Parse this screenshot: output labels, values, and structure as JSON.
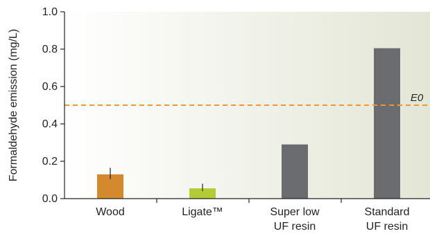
{
  "chart_data": {
    "type": "bar",
    "categories": [
      "Wood",
      "Ligate™",
      "Super low UF resin",
      "Standard UF resin"
    ],
    "category_lines": [
      [
        "Wood"
      ],
      [
        "Ligate™"
      ],
      [
        "Super low",
        "UF resin"
      ],
      [
        "Standard",
        "UF resin"
      ]
    ],
    "values": [
      0.13,
      0.055,
      0.29,
      0.805
    ],
    "error_bars": [
      {
        "low": 0.105,
        "high": 0.165
      },
      {
        "low": 0.04,
        "high": 0.08
      },
      null,
      null
    ],
    "bar_colors": [
      "#D4892E",
      "#B2CC35",
      "#6B6C70",
      "#6B6C70"
    ],
    "ylabel": "Formaldehyde emission (mg/L)",
    "xlabel": "",
    "ylim": [
      0,
      1.0
    ],
    "yticks": [
      "0.0",
      "0.2",
      "0.4",
      "0.6",
      "0.8",
      "1.0"
    ],
    "reference_line": {
      "label": "E0",
      "value": 0.5,
      "color": "#F0962E",
      "style": "dashed"
    },
    "background_gradient": [
      "#FFFFFF",
      "#E3E6D5"
    ],
    "grid": false
  }
}
